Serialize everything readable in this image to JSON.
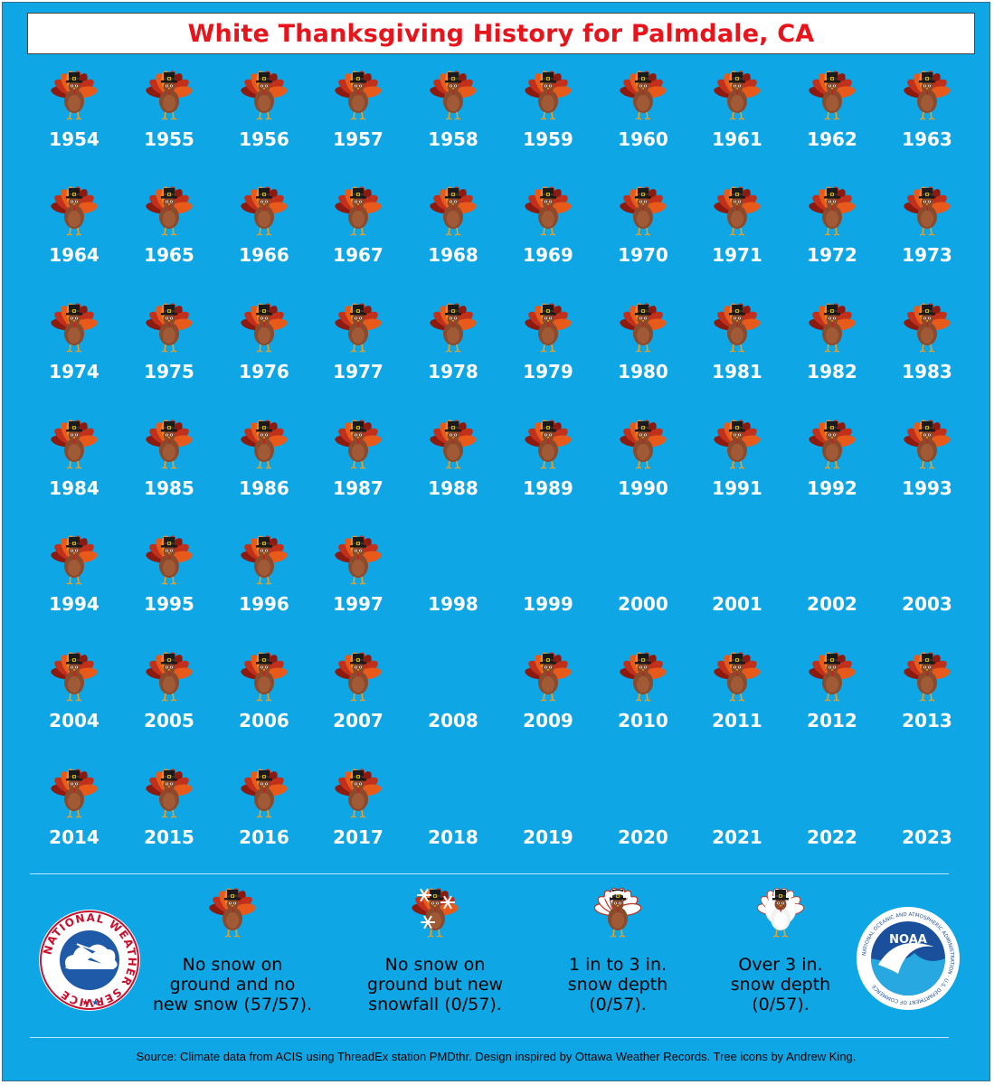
{
  "title": "White Thanksgiving History for Palmdale, CA",
  "years": [
    {
      "year": "1954",
      "status": "no-snow"
    },
    {
      "year": "1955",
      "status": "no-snow"
    },
    {
      "year": "1956",
      "status": "no-snow"
    },
    {
      "year": "1957",
      "status": "no-snow"
    },
    {
      "year": "1958",
      "status": "no-snow"
    },
    {
      "year": "1959",
      "status": "no-snow"
    },
    {
      "year": "1960",
      "status": "no-snow"
    },
    {
      "year": "1961",
      "status": "no-snow"
    },
    {
      "year": "1962",
      "status": "no-snow"
    },
    {
      "year": "1963",
      "status": "no-snow"
    },
    {
      "year": "1964",
      "status": "no-snow"
    },
    {
      "year": "1965",
      "status": "no-snow"
    },
    {
      "year": "1966",
      "status": "no-snow"
    },
    {
      "year": "1967",
      "status": "no-snow"
    },
    {
      "year": "1968",
      "status": "no-snow"
    },
    {
      "year": "1969",
      "status": "no-snow"
    },
    {
      "year": "1970",
      "status": "no-snow"
    },
    {
      "year": "1971",
      "status": "no-snow"
    },
    {
      "year": "1972",
      "status": "no-snow"
    },
    {
      "year": "1973",
      "status": "no-snow"
    },
    {
      "year": "1974",
      "status": "no-snow"
    },
    {
      "year": "1975",
      "status": "no-snow"
    },
    {
      "year": "1976",
      "status": "no-snow"
    },
    {
      "year": "1977",
      "status": "no-snow"
    },
    {
      "year": "1978",
      "status": "no-snow"
    },
    {
      "year": "1979",
      "status": "no-snow"
    },
    {
      "year": "1980",
      "status": "no-snow"
    },
    {
      "year": "1981",
      "status": "no-snow"
    },
    {
      "year": "1982",
      "status": "no-snow"
    },
    {
      "year": "1983",
      "status": "no-snow"
    },
    {
      "year": "1984",
      "status": "no-snow"
    },
    {
      "year": "1985",
      "status": "no-snow"
    },
    {
      "year": "1986",
      "status": "no-snow"
    },
    {
      "year": "1987",
      "status": "no-snow"
    },
    {
      "year": "1988",
      "status": "no-snow"
    },
    {
      "year": "1989",
      "status": "no-snow"
    },
    {
      "year": "1990",
      "status": "no-snow"
    },
    {
      "year": "1991",
      "status": "no-snow"
    },
    {
      "year": "1992",
      "status": "no-snow"
    },
    {
      "year": "1993",
      "status": "no-snow"
    },
    {
      "year": "1994",
      "status": "no-snow"
    },
    {
      "year": "1995",
      "status": "no-snow"
    },
    {
      "year": "1996",
      "status": "no-snow"
    },
    {
      "year": "1997",
      "status": "no-snow"
    },
    {
      "year": "1998",
      "status": "missing"
    },
    {
      "year": "1999",
      "status": "missing"
    },
    {
      "year": "2000",
      "status": "missing"
    },
    {
      "year": "2001",
      "status": "missing"
    },
    {
      "year": "2002",
      "status": "missing"
    },
    {
      "year": "2003",
      "status": "missing"
    },
    {
      "year": "2004",
      "status": "no-snow"
    },
    {
      "year": "2005",
      "status": "no-snow"
    },
    {
      "year": "2006",
      "status": "no-snow"
    },
    {
      "year": "2007",
      "status": "no-snow"
    },
    {
      "year": "2008",
      "status": "missing"
    },
    {
      "year": "2009",
      "status": "no-snow"
    },
    {
      "year": "2010",
      "status": "no-snow"
    },
    {
      "year": "2011",
      "status": "no-snow"
    },
    {
      "year": "2012",
      "status": "no-snow"
    },
    {
      "year": "2013",
      "status": "no-snow"
    },
    {
      "year": "2014",
      "status": "no-snow"
    },
    {
      "year": "2015",
      "status": "no-snow"
    },
    {
      "year": "2016",
      "status": "no-snow"
    },
    {
      "year": "2017",
      "status": "no-snow"
    },
    {
      "year": "2018",
      "status": "missing"
    },
    {
      "year": "2019",
      "status": "missing"
    },
    {
      "year": "2020",
      "status": "missing"
    },
    {
      "year": "2021",
      "status": "missing"
    },
    {
      "year": "2022",
      "status": "missing"
    },
    {
      "year": "2023",
      "status": "missing"
    }
  ],
  "legend": [
    {
      "icon": "turkey-icon",
      "text": "No snow on\nground and no\nnew snow (57/57)."
    },
    {
      "icon": "turkey-snowflake-icon",
      "text": "No snow on\nground but new\nsnowfall (0/57)."
    },
    {
      "icon": "turkey-light-snow-icon",
      "text": "1 in to 3 in.\nsnow depth\n(0/57)."
    },
    {
      "icon": "turkey-heavy-snow-icon",
      "text": "Over 3 in.\nsnow depth\n(0/57)."
    }
  ],
  "logos": {
    "nws": "NATIONAL WEATHER SERVICE",
    "noaa": "NOAA",
    "noaa_ring": "NATIONAL OCEANIC AND ATMOSPHERIC ADMINISTRATION · U.S. DEPARTMENT OF COMMERCE"
  },
  "source": "Source: Climate data from ACIS using ThreadEx station PMDthr. Design inspired by Ottawa Weather Records. Tree icons by Andrew King.",
  "colors": {
    "background": "#0fa6e6",
    "title_text": "#e8141c",
    "year_text": "#ffffff"
  }
}
